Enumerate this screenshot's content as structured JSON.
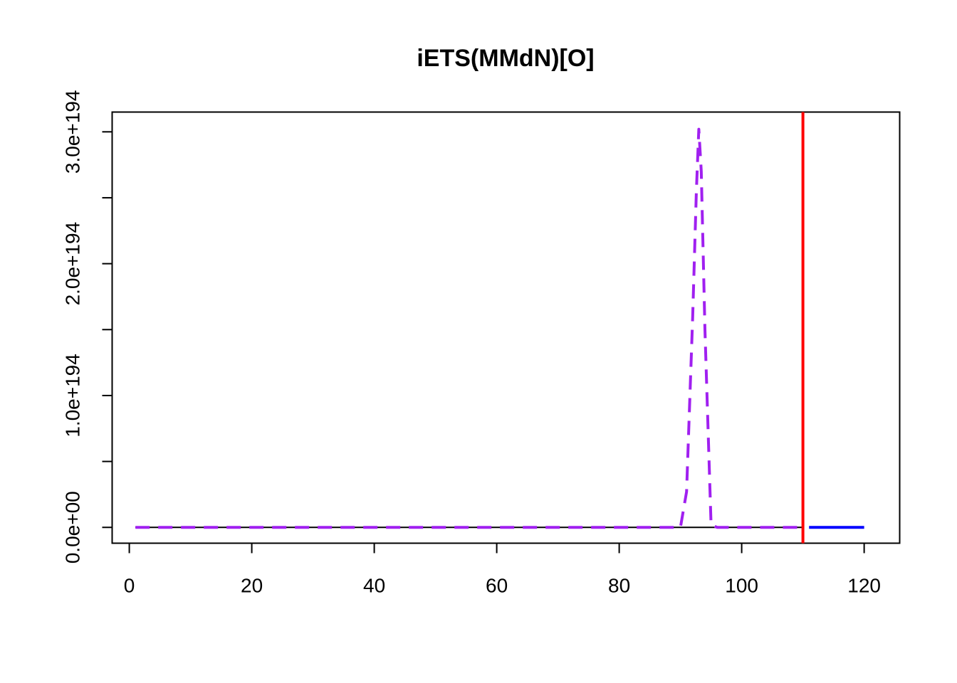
{
  "chart_data": {
    "type": "line",
    "title": "iETS(MMdN)[O]",
    "xlabel": "",
    "ylabel": "",
    "xlim": [
      -2.8,
      125.8
    ],
    "ylim": [
      -1.2e+193,
      3.15e+194
    ],
    "x_ticks": [
      0,
      20,
      40,
      60,
      80,
      100,
      120
    ],
    "x_tick_labels": [
      "0",
      "20",
      "40",
      "60",
      "80",
      "100",
      "120"
    ],
    "y_ticks": [
      0,
      5e+193,
      1e+194,
      1.5e+194,
      2e+194,
      2.5e+194,
      3e+194
    ],
    "y_tick_labels": [
      "0.0e+00",
      "",
      "1.0e+194",
      "",
      "2.0e+194",
      "",
      "3.0e+194"
    ],
    "grid": false,
    "series": [
      {
        "role": "actual",
        "color": "#000000",
        "style": "solid",
        "x": [
          1,
          110
        ],
        "y": [
          0,
          0
        ]
      },
      {
        "role": "fitted",
        "color": "#a020f0",
        "style": "dashed",
        "x": [
          1,
          10,
          20,
          30,
          40,
          50,
          60,
          70,
          80,
          89,
          90,
          91,
          92,
          92.6,
          93,
          93.4,
          94,
          95,
          96,
          100,
          110
        ],
        "y": [
          0,
          0,
          0,
          0,
          0,
          0,
          0,
          0,
          0,
          0,
          0,
          2.7e+193,
          1.6e+194,
          2.55e+194,
          3.02e+194,
          2.7e+194,
          1.5e+194,
          2e+192,
          0,
          0,
          0
        ]
      },
      {
        "role": "forecast",
        "color": "#0000ff",
        "style": "solid",
        "x": [
          111,
          120
        ],
        "y": [
          0,
          0
        ]
      }
    ],
    "vlines": [
      {
        "x": 110,
        "color": "#ff0000"
      }
    ]
  }
}
